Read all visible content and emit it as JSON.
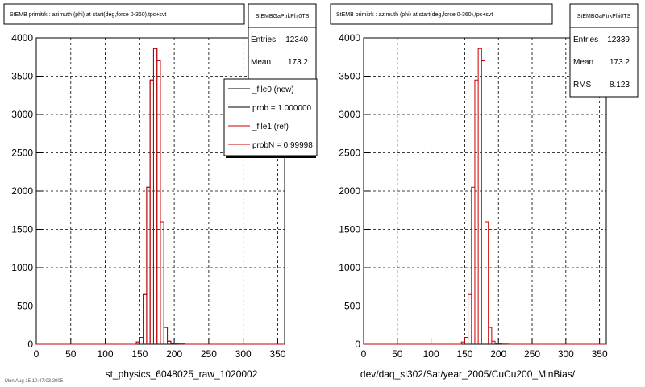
{
  "panels": [
    {
      "title": "StEMB primitrk : azimuth (phi) at start(deg,force 0-360),tpc+svt",
      "stats_title": "StEMBGaPtrkPhi0TS",
      "stats": [
        {
          "label": "Entries",
          "value": "12340"
        },
        {
          "label": "Mean",
          "value": "173.2"
        }
      ],
      "xlabel": "st_physics_6048025_raw_1020002",
      "legend": [
        {
          "label": "_file0 (new)",
          "color": "#000000"
        },
        {
          "label": "prob = 1.000000",
          "color": "#000000"
        },
        {
          "label": "_file1 (ref)",
          "color": "#cc0000"
        },
        {
          "label": "probN = 0.99998",
          "color": "#cc0000"
        }
      ]
    },
    {
      "title": "StEMB primitrk : azimuth (phi) at start(deg,force 0-360),tpc+svt",
      "stats_title": "StEMBGaPtrkPhi0TS",
      "stats": [
        {
          "label": "Entries",
          "value": "12339"
        },
        {
          "label": "Mean",
          "value": "173.2"
        },
        {
          "label": "RMS",
          "value": "8.123"
        }
      ],
      "xlabel": "dev/daq_sl302/Sat/year_2005/CuCu200_MinBias/",
      "legend": []
    }
  ],
  "footer": "Mon Aug 15 10:47:03 2005",
  "chart_data": [
    {
      "type": "bar",
      "title": "StEMB primitrk : azimuth (phi) at start(deg,force 0-360),tpc+svt",
      "xlabel": "st_physics_6048025_raw_1020002",
      "ylabel": "",
      "xlim": [
        0,
        360
      ],
      "ylim": [
        0,
        4000
      ],
      "xticks": [
        0,
        50,
        100,
        150,
        200,
        250,
        300,
        350
      ],
      "yticks": [
        0,
        500,
        1000,
        1500,
        2000,
        2500,
        3000,
        3500,
        4000
      ],
      "grid": true,
      "bin_width": 5,
      "series": [
        {
          "name": "_file0 (new)",
          "color": "#000000",
          "x": [
            145,
            150,
            155,
            160,
            165,
            170,
            175,
            180,
            185,
            190,
            195,
            200,
            205,
            210
          ],
          "values": [
            30,
            90,
            650,
            2050,
            3450,
            3860,
            3700,
            1600,
            220,
            40,
            12,
            5,
            3,
            2
          ]
        },
        {
          "name": "_file1 (ref)",
          "color": "#cc0000",
          "x": [
            145,
            150,
            155,
            160,
            165,
            170,
            175,
            180,
            185,
            190,
            195,
            200,
            205,
            210
          ],
          "values": [
            30,
            90,
            650,
            2050,
            3450,
            3860,
            3700,
            1600,
            220,
            40,
            12,
            5,
            3,
            2
          ]
        }
      ]
    },
    {
      "type": "bar",
      "title": "StEMB primitrk : azimuth (phi) at start(deg,force 0-360),tpc+svt",
      "xlabel": "dev/daq_sl302/Sat/year_2005/CuCu200_MinBias/",
      "ylabel": "",
      "xlim": [
        0,
        360
      ],
      "ylim": [
        0,
        4000
      ],
      "xticks": [
        0,
        50,
        100,
        150,
        200,
        250,
        300,
        350
      ],
      "yticks": [
        0,
        500,
        1000,
        1500,
        2000,
        2500,
        3000,
        3500,
        4000
      ],
      "grid": true,
      "bin_width": 5,
      "series": [
        {
          "name": "",
          "color": "#cc0000",
          "x": [
            145,
            150,
            155,
            160,
            165,
            170,
            175,
            180,
            185,
            190,
            195,
            200,
            205,
            210
          ],
          "values": [
            30,
            90,
            650,
            2050,
            3450,
            3860,
            3700,
            1600,
            220,
            40,
            12,
            5,
            3,
            2
          ]
        }
      ]
    }
  ]
}
